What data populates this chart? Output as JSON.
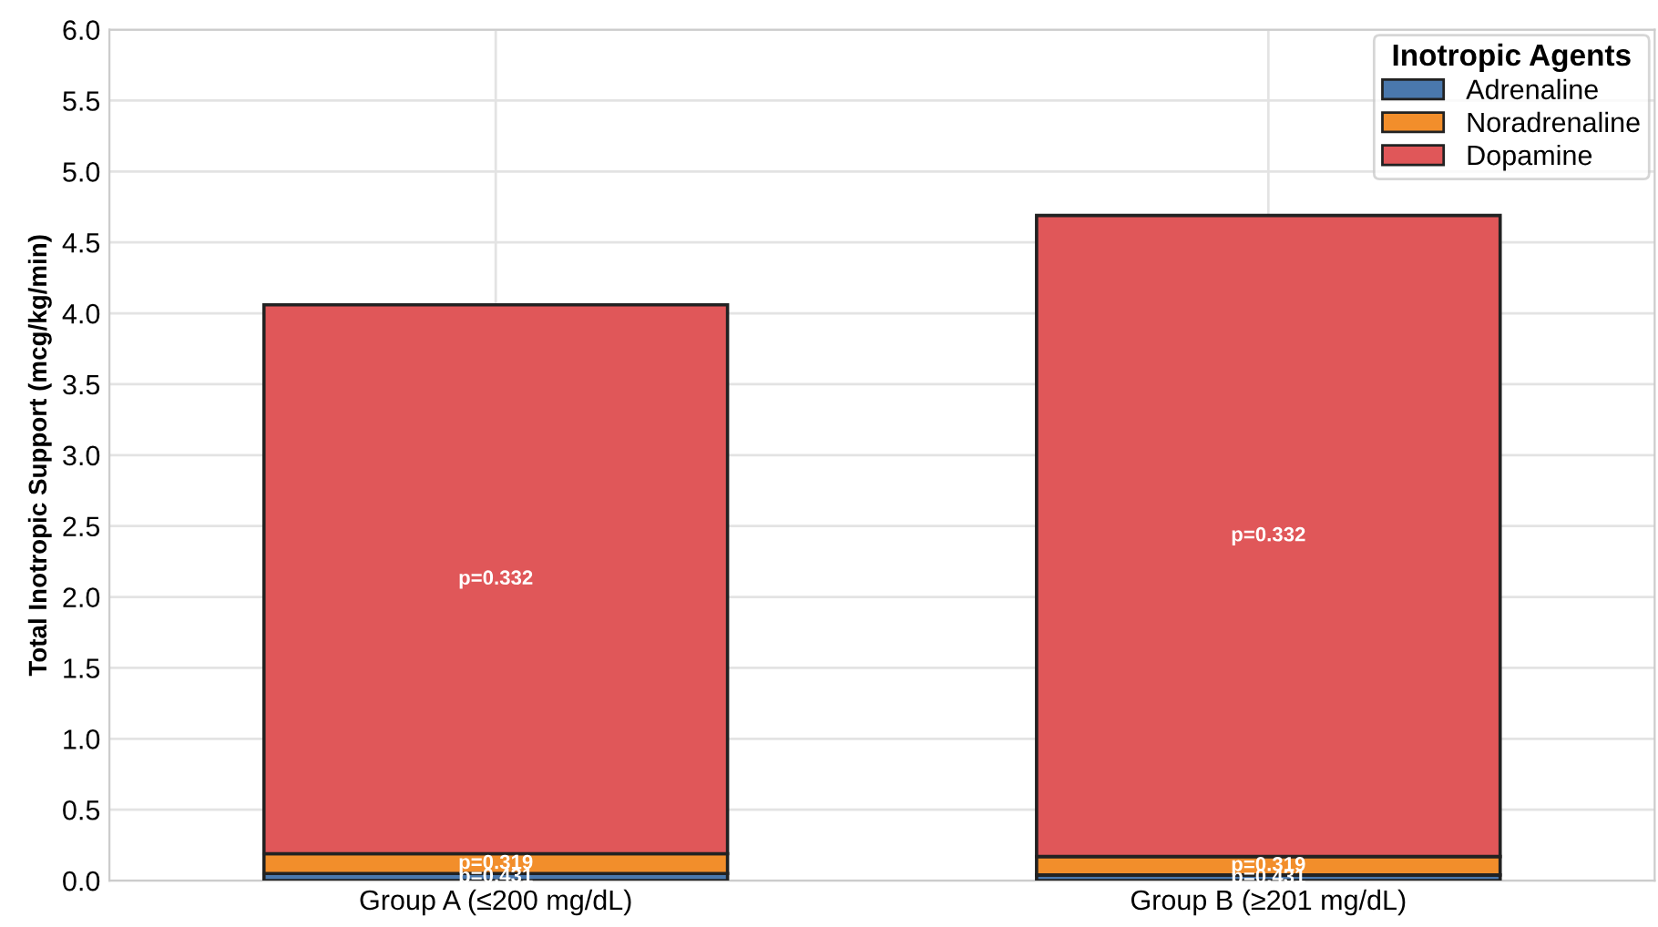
{
  "chart_data": {
    "type": "bar",
    "stacked": true,
    "ylabel": "Total Inotropic Support (mcg/kg/min)",
    "legend_title": "Inotropic Agents",
    "categories": [
      "Group A (≤200 mg/dL)",
      "Group B (≥201 mg/dL)"
    ],
    "series": [
      {
        "name": "Adrenaline",
        "color": "#4a78ad",
        "values": [
          0.05,
          0.04
        ]
      },
      {
        "name": "Noradrenaline",
        "color": "#f28e2b",
        "values": [
          0.14,
          0.13
        ]
      },
      {
        "name": "Dopamine",
        "color": "#e05759",
        "values": [
          3.87,
          4.52
        ]
      }
    ],
    "annotations": [
      "p=0.431",
      "p=0.319",
      "p=0.332",
      "p=0.431",
      "p=0.319",
      "p=0.332"
    ],
    "ylim": [
      0,
      6
    ],
    "yticks": [
      {
        "value": 0,
        "label": "0.0"
      },
      {
        "value": 0.5,
        "label": "0.5"
      },
      {
        "value": 1,
        "label": "1.0"
      },
      {
        "value": 1.5,
        "label": "1.5"
      },
      {
        "value": 2,
        "label": "2.0"
      },
      {
        "value": 2.5,
        "label": "2.5"
      },
      {
        "value": 3,
        "label": "3.0"
      },
      {
        "value": 3.5,
        "label": "3.5"
      },
      {
        "value": 4,
        "label": "4.0"
      },
      {
        "value": 4.5,
        "label": "4.5"
      },
      {
        "value": 5,
        "label": "5.0"
      },
      {
        "value": 5.5,
        "label": "5.5"
      },
      {
        "value": 6,
        "label": "6.0"
      }
    ],
    "grid": true,
    "legend": "top right"
  }
}
